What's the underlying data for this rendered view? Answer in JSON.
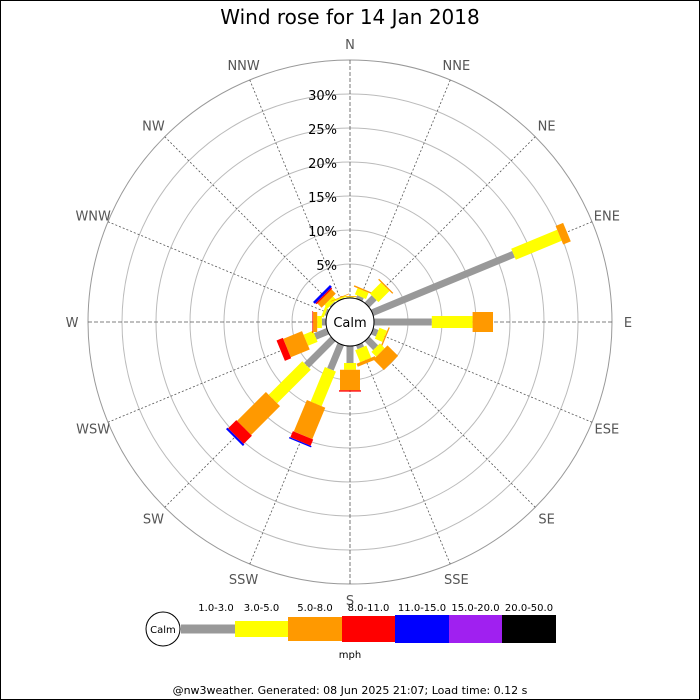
{
  "title": "Wind rose for 14 Jan 2018",
  "footer": "@nw3weather. Generated: 08 Jun 2025 21:07; Load time: 0.12 s",
  "chart_data": {
    "type": "wind-rose",
    "title": "Wind rose for 14 Jan 2018",
    "unit": "mph",
    "calm_label": "Calm",
    "directions": [
      "N",
      "NNE",
      "NE",
      "ENE",
      "E",
      "ESE",
      "SE",
      "SSE",
      "S",
      "SSW",
      "SW",
      "WSW",
      "W",
      "WNW",
      "NW",
      "NNW"
    ],
    "radial_ticks": [
      5,
      10,
      15,
      20,
      25,
      30
    ],
    "radial_tick_labels": [
      "5%",
      "10%",
      "15%",
      "20%",
      "25%",
      "30%"
    ],
    "rmax_percent": 35,
    "speed_bins": [
      {
        "label": "1.0-3.0",
        "color": "#999999"
      },
      {
        "label": "3.0-5.0",
        "color": "#ffff00"
      },
      {
        "label": "5.0-8.0",
        "color": "#ff9900"
      },
      {
        "label": "8.0-11.0",
        "color": "#ff0000"
      },
      {
        "label": "11.0-15.0",
        "color": "#0000ff"
      },
      {
        "label": "15.0-20.0",
        "color": "#a020f0"
      },
      {
        "label": "20.0-50.0",
        "color": "#000000"
      }
    ],
    "cumulative_percent": {
      "N": [
        0.1,
        0.2,
        0.3,
        0,
        0,
        0,
        0
      ],
      "NNE": [
        0.5,
        1.5,
        1.7,
        0,
        0,
        0,
        0
      ],
      "NE": [
        1.5,
        3.8,
        4.0,
        0,
        0,
        0,
        0
      ],
      "ENE": [
        22.5,
        29.8,
        31.0,
        0,
        0,
        0,
        0
      ],
      "E": [
        8.5,
        14.5,
        17.5,
        0,
        0,
        0,
        0
      ],
      "ESE": [
        0.8,
        2.0,
        2.2,
        0,
        0,
        0,
        0
      ],
      "SE": [
        1.8,
        2.8,
        5.0,
        0,
        0,
        0,
        0
      ],
      "SSE": [
        0.6,
        2.5,
        3.0,
        0,
        0,
        0,
        0
      ],
      "S": [
        2.5,
        3.5,
        6.5,
        6.7,
        0,
        0,
        0
      ],
      "SSW": [
        4.0,
        9.5,
        14.5,
        15.5,
        15.7,
        0,
        0
      ],
      "SW": [
        5.5,
        12.5,
        18.5,
        20.2,
        20.5,
        0,
        0
      ],
      "WSW": [
        2.0,
        3.5,
        6.5,
        7.5,
        0,
        0,
        0
      ],
      "W": [
        0.6,
        1.3,
        1.9,
        2.0,
        0,
        0,
        0
      ],
      "WNW": [
        0.3,
        0.7,
        0,
        0,
        0,
        0,
        0
      ],
      "NW": [
        0.2,
        0.9,
        1.8,
        2.0,
        2.4,
        0,
        0
      ],
      "NNW": [
        0.1,
        0.3,
        0.4,
        0,
        0,
        0,
        0
      ]
    },
    "legend": "bottom"
  }
}
